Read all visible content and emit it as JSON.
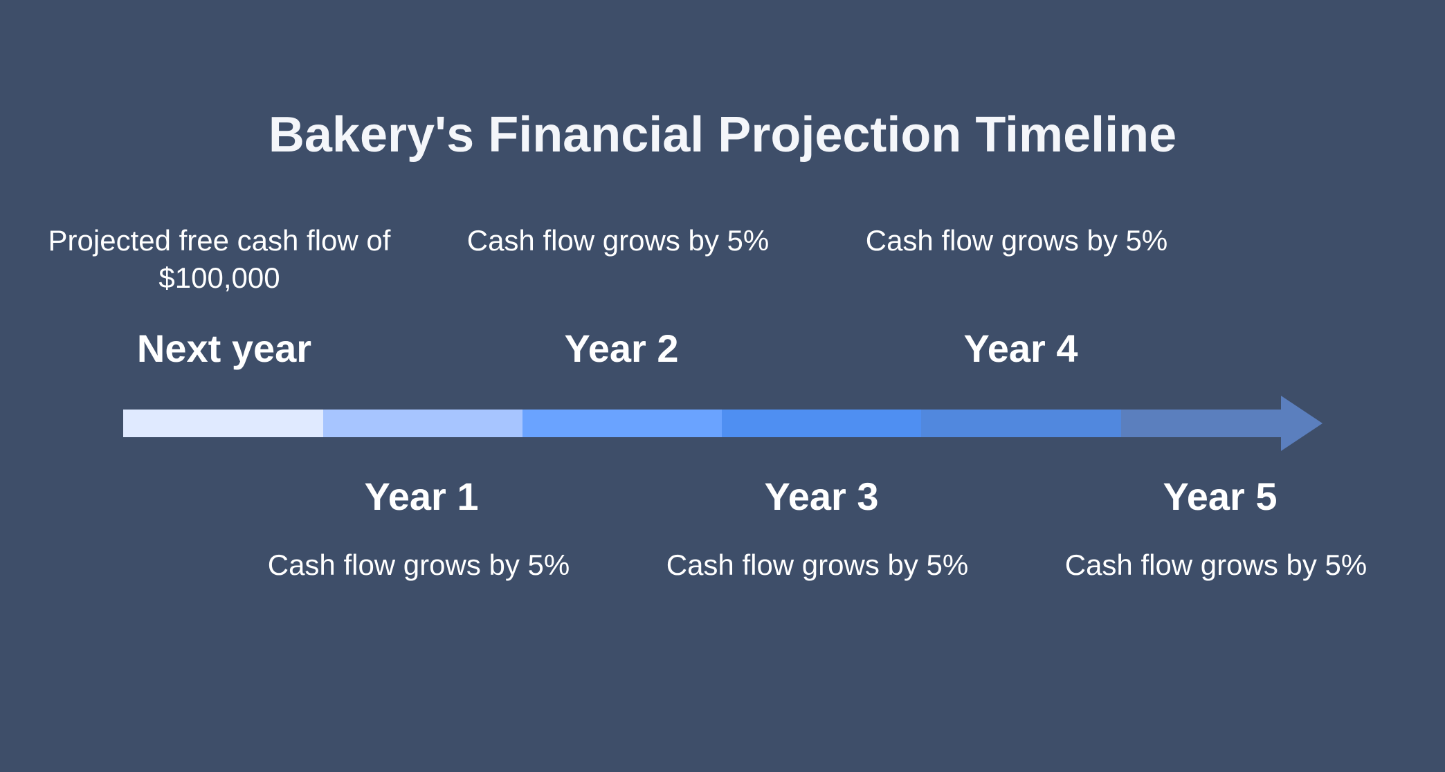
{
  "title": "Bakery's Financial Projection Timeline",
  "milestones": [
    {
      "label": "Next year",
      "description": "Projected free cash flow of $100,000",
      "position": "above"
    },
    {
      "label": "Year 1",
      "description": "Cash flow grows by 5%",
      "position": "below"
    },
    {
      "label": "Year 2",
      "description": "Cash flow grows by 5%",
      "position": "above"
    },
    {
      "label": "Year 3",
      "description": "Cash flow grows by 5%",
      "position": "below"
    },
    {
      "label": "Year 4",
      "description": "Cash flow grows by 5%",
      "position": "above"
    },
    {
      "label": "Year 5",
      "description": "Cash flow grows by 5%",
      "position": "below"
    }
  ],
  "colors": {
    "background": "#3e4e69",
    "segments": [
      "#e0eaff",
      "#a7c5ff",
      "#6aa3ff",
      "#4f8ff2",
      "#5188de",
      "#5b7fbe"
    ],
    "arrow_head": "#5b7fbe"
  }
}
